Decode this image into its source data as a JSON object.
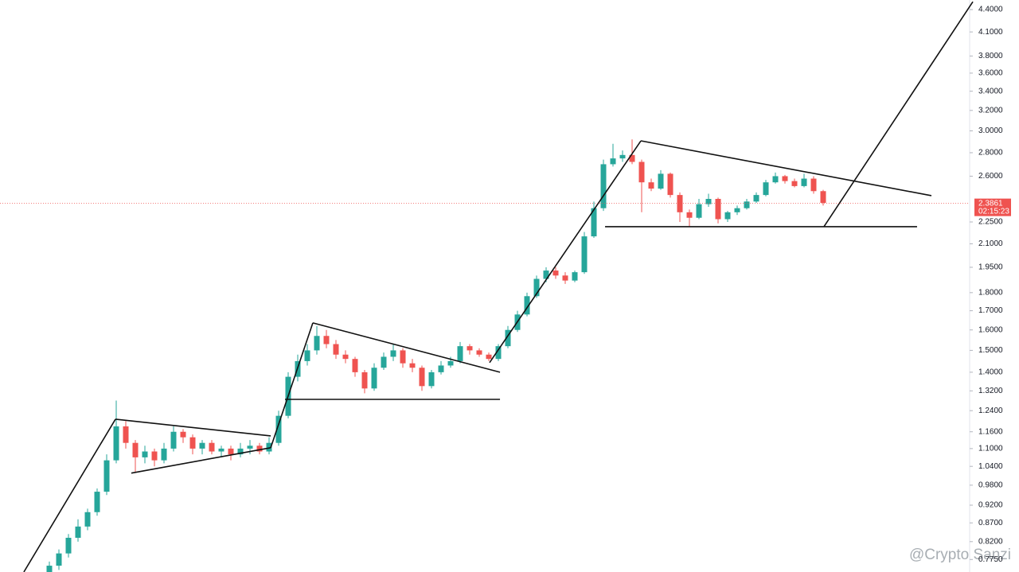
{
  "chart_data": {
    "type": "candlestick",
    "log_scale": true,
    "up_color": "#26a69a",
    "down_color": "#ef5350",
    "open": [
      0.74,
      0.76,
      0.79,
      0.83,
      0.86,
      0.9,
      0.96,
      1.06,
      1.18,
      1.12,
      1.07,
      1.09,
      1.06,
      1.1,
      1.16,
      1.14,
      1.1,
      1.12,
      1.09,
      1.1,
      1.08,
      1.1,
      1.11,
      1.09,
      1.12,
      1.22,
      1.38,
      1.45,
      1.5,
      1.57,
      1.53,
      1.48,
      1.46,
      1.4,
      1.33,
      1.42,
      1.47,
      1.5,
      1.44,
      1.42,
      1.34,
      1.4,
      1.43,
      1.45,
      1.52,
      1.5,
      1.48,
      1.46,
      1.52,
      1.6,
      1.68,
      1.78,
      1.88,
      1.93,
      1.9,
      1.87,
      1.92,
      2.15,
      2.35,
      2.7,
      2.75,
      2.78,
      2.72,
      2.55,
      2.5,
      2.62,
      2.45,
      2.32,
      2.28,
      2.38,
      2.42,
      2.27,
      2.32,
      2.35,
      2.4,
      2.45,
      2.55,
      2.6,
      2.56,
      2.52,
      2.58,
      2.48
    ],
    "high": [
      0.77,
      0.8,
      0.84,
      0.88,
      0.91,
      0.97,
      1.08,
      1.28,
      1.2,
      1.13,
      1.11,
      1.1,
      1.12,
      1.18,
      1.17,
      1.15,
      1.13,
      1.13,
      1.11,
      1.11,
      1.12,
      1.13,
      1.12,
      1.14,
      1.24,
      1.4,
      1.48,
      1.53,
      1.62,
      1.6,
      1.55,
      1.5,
      1.47,
      1.41,
      1.44,
      1.49,
      1.53,
      1.51,
      1.46,
      1.43,
      1.41,
      1.45,
      1.47,
      1.54,
      1.53,
      1.51,
      1.49,
      1.53,
      1.62,
      1.7,
      1.8,
      1.9,
      1.95,
      1.95,
      1.92,
      1.93,
      2.18,
      2.4,
      2.74,
      2.88,
      2.82,
      2.92,
      2.74,
      2.58,
      2.65,
      2.63,
      2.47,
      2.34,
      2.42,
      2.46,
      2.43,
      2.33,
      2.37,
      2.42,
      2.47,
      2.57,
      2.63,
      2.61,
      2.58,
      2.62,
      2.6,
      2.49
    ],
    "low": [
      0.73,
      0.75,
      0.78,
      0.82,
      0.85,
      0.89,
      0.95,
      1.05,
      1.1,
      1.02,
      1.05,
      1.04,
      1.05,
      1.09,
      1.12,
      1.08,
      1.08,
      1.08,
      1.07,
      1.06,
      1.07,
      1.08,
      1.08,
      1.08,
      1.11,
      1.21,
      1.36,
      1.43,
      1.48,
      1.51,
      1.46,
      1.44,
      1.38,
      1.31,
      1.32,
      1.41,
      1.45,
      1.42,
      1.4,
      1.32,
      1.33,
      1.39,
      1.42,
      1.44,
      1.48,
      1.47,
      1.45,
      1.45,
      1.51,
      1.59,
      1.67,
      1.77,
      1.86,
      1.88,
      1.85,
      1.86,
      1.91,
      2.14,
      2.33,
      2.68,
      2.72,
      2.7,
      2.32,
      2.48,
      2.49,
      2.43,
      2.25,
      2.22,
      2.27,
      2.36,
      2.24,
      2.25,
      2.3,
      2.34,
      2.39,
      2.44,
      2.54,
      2.54,
      2.51,
      2.51,
      2.46,
      2.37
    ],
    "close": [
      0.76,
      0.79,
      0.83,
      0.86,
      0.9,
      0.96,
      1.06,
      1.18,
      1.12,
      1.07,
      1.09,
      1.06,
      1.1,
      1.16,
      1.14,
      1.1,
      1.12,
      1.09,
      1.1,
      1.08,
      1.1,
      1.11,
      1.09,
      1.12,
      1.22,
      1.38,
      1.45,
      1.5,
      1.57,
      1.53,
      1.48,
      1.46,
      1.4,
      1.33,
      1.42,
      1.47,
      1.5,
      1.44,
      1.42,
      1.34,
      1.4,
      1.43,
      1.45,
      1.52,
      1.5,
      1.48,
      1.46,
      1.52,
      1.6,
      1.68,
      1.78,
      1.88,
      1.93,
      1.9,
      1.87,
      1.92,
      2.15,
      2.35,
      2.7,
      2.75,
      2.78,
      2.72,
      2.55,
      2.5,
      2.62,
      2.45,
      2.32,
      2.28,
      2.38,
      2.42,
      2.27,
      2.32,
      2.35,
      2.4,
      2.45,
      2.55,
      2.6,
      2.56,
      2.52,
      2.58,
      2.48,
      2.39
    ],
    "ylim": [
      0.745,
      4.535
    ],
    "yticks": [
      {
        "value": 4.4,
        "label": "4.4000"
      },
      {
        "value": 4.1,
        "label": "4.1000"
      },
      {
        "value": 3.8,
        "label": "3.8000"
      },
      {
        "value": 3.6,
        "label": "3.6000"
      },
      {
        "value": 3.4,
        "label": "3.4000"
      },
      {
        "value": 3.2,
        "label": "3.2000"
      },
      {
        "value": 3.0,
        "label": "3.0000"
      },
      {
        "value": 2.8,
        "label": "2.8000"
      },
      {
        "value": 2.6,
        "label": "2.6000"
      },
      {
        "value": 2.25,
        "label": "2.2500"
      },
      {
        "value": 2.1,
        "label": "2.1000"
      },
      {
        "value": 1.95,
        "label": "1.9500"
      },
      {
        "value": 1.8,
        "label": "1.8000"
      },
      {
        "value": 1.7,
        "label": "1.7000"
      },
      {
        "value": 1.6,
        "label": "1.6000"
      },
      {
        "value": 1.5,
        "label": "1.5000"
      },
      {
        "value": 1.4,
        "label": "1.4000"
      },
      {
        "value": 1.32,
        "label": "1.3200"
      },
      {
        "value": 1.24,
        "label": "1.2400"
      },
      {
        "value": 1.16,
        "label": "1.1600"
      },
      {
        "value": 1.1,
        "label": "1.1000"
      },
      {
        "value": 1.04,
        "label": "1.0400"
      },
      {
        "value": 0.98,
        "label": "0.9800"
      },
      {
        "value": 0.92,
        "label": "0.9200"
      },
      {
        "value": 0.87,
        "label": "0.8700"
      },
      {
        "value": 0.82,
        "label": "0.8200"
      },
      {
        "value": 0.775,
        "label": "0.7750"
      }
    ],
    "last_price": {
      "value": 2.3861,
      "label": "2.3861",
      "countdown": "02:15:23"
    },
    "trendlines": [
      {
        "start": [
          -2.67,
          0.745
        ],
        "end": [
          6.92,
          1.207
        ]
      },
      {
        "start": [
          6.92,
          1.207
        ],
        "end": [
          23.17,
          1.145
        ]
      },
      {
        "start": [
          8.58,
          1.018
        ],
        "end": [
          23.17,
          1.103
        ]
      },
      {
        "start": [
          23.17,
          1.103
        ],
        "end": [
          27.58,
          1.636
        ]
      },
      {
        "start": [
          27.58,
          1.636
        ],
        "end": [
          47.17,
          1.4
        ]
      },
      {
        "start": [
          24.67,
          1.285
        ],
        "end": [
          47.17,
          1.285
        ]
      },
      {
        "start": [
          46.08,
          1.443
        ],
        "end": [
          61.92,
          2.907
        ]
      },
      {
        "start": [
          61.92,
          2.907
        ],
        "end": [
          92.33,
          2.445
        ]
      },
      {
        "start": [
          58.17,
          2.217
        ],
        "end": [
          90.83,
          2.217
        ]
      },
      {
        "start": [
          81.08,
          2.217
        ],
        "end": [
          96.67,
          4.51
        ]
      }
    ],
    "watermark": "@Crypto Sanzi"
  }
}
